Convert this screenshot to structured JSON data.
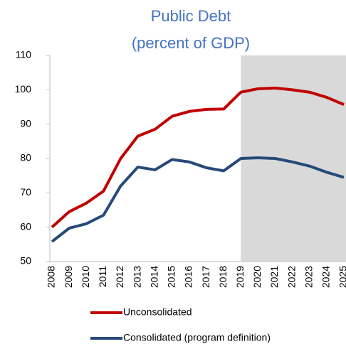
{
  "chart_data": {
    "type": "line",
    "title": "Public Debt",
    "subtitle": "(percent of GDP)",
    "categories": [
      "2008",
      "2009",
      "2010",
      "2011",
      "2012",
      "2013",
      "2014",
      "2015",
      "2016",
      "2017",
      "2018",
      "2019",
      "2020",
      "2021",
      "2022",
      "2023",
      "2024",
      "2025"
    ],
    "series": [
      {
        "name": "Unconsolidated",
        "color": "#c00000",
        "values": [
          60,
          64.5,
          67,
          70.5,
          80,
          86.5,
          88.5,
          92.3,
          93.7,
          94.3,
          94.4,
          99.3,
          100.3,
          100.5,
          100,
          99.3,
          97.8,
          95.7
        ]
      },
      {
        "name": "Consolidated (program definition)",
        "color": "#254a78",
        "values": [
          55.8,
          59.7,
          61,
          63.5,
          72,
          77.5,
          76.7,
          79.7,
          79,
          77.3,
          76.4,
          80,
          80.2,
          80,
          79,
          77.8,
          76,
          74.5
        ]
      }
    ],
    "shaded_from": "2019",
    "shade_color": "#d9d9d9",
    "ylim": [
      50,
      110
    ],
    "yticks": [
      50,
      60,
      70,
      80,
      90,
      100,
      110
    ],
    "grid": false
  }
}
